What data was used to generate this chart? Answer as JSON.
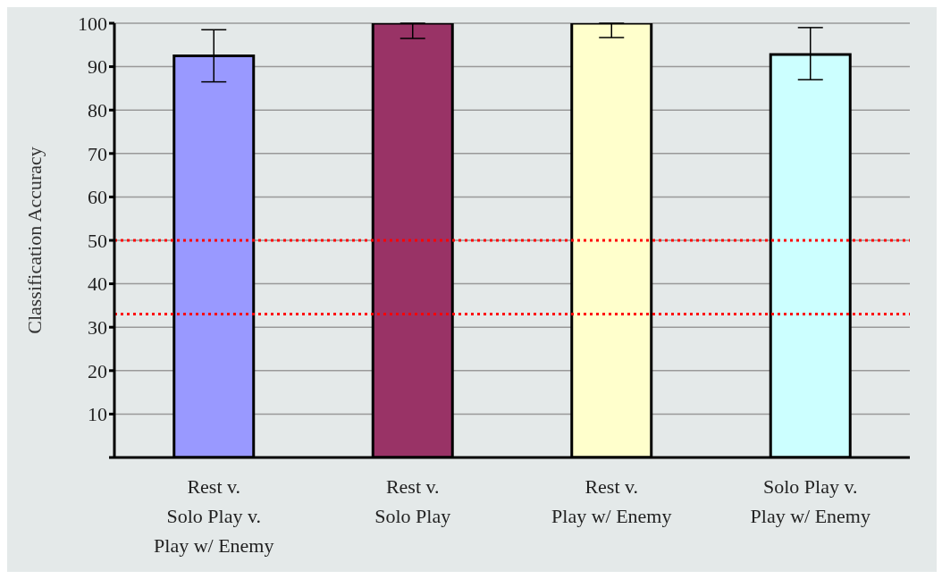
{
  "chart_data": {
    "type": "bar",
    "ylabel": "Classification Accuracy",
    "categories": [
      "Rest v.\nSolo Play v.\nPlay w/ Enemy",
      "Rest v.\nSolo Play",
      "Rest v.\nPlay w/ Enemy",
      "Solo Play v.\nPlay w/ Enemy"
    ],
    "values": [
      92.5,
      100,
      100,
      92.8
    ],
    "colors": [
      "#9999ff",
      "#993366",
      "#ffffcc",
      "#ccffff"
    ],
    "errors": [
      [
        86.5,
        98.5
      ],
      [
        96.5,
        100
      ],
      [
        96.7,
        100
      ],
      [
        87,
        99
      ]
    ],
    "ylim": [
      0,
      100
    ],
    "yticks": [
      {
        "value": 0,
        "label": null
      },
      10,
      20,
      30,
      40,
      50,
      60,
      70,
      80,
      90,
      100
    ],
    "grid": "y",
    "ref_lines": [
      {
        "axis": "y",
        "value": 33,
        "color": "#ff0000",
        "line_style": "dotted"
      },
      {
        "axis": "y",
        "value": 50,
        "color": "#ff0000",
        "line_style": "dotted"
      }
    ]
  }
}
